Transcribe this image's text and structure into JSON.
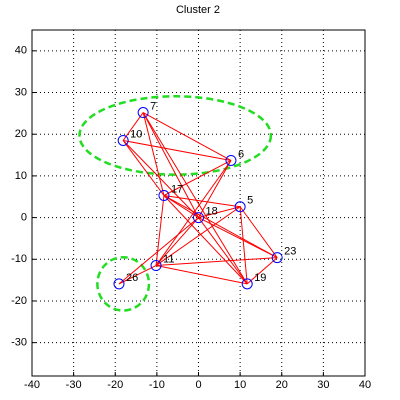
{
  "chart_data": {
    "type": "graph",
    "title": "Cluster 2",
    "xlim": [
      -40,
      40
    ],
    "ylim": [
      -38,
      45
    ],
    "xticks": [
      -40,
      -30,
      -20,
      -10,
      0,
      10,
      20,
      30,
      40
    ],
    "yticks": [
      -30,
      -20,
      -10,
      0,
      10,
      20,
      30,
      40
    ],
    "grid": true,
    "node_color": "#0000ff",
    "edge_color": "#ff0000",
    "ellipse_color": "#22dd22",
    "nodes": [
      {
        "label": "7",
        "x": -13.3,
        "y": 25.2
      },
      {
        "label": "10",
        "x": -18.1,
        "y": 18.5
      },
      {
        "label": "6",
        "x": 7.8,
        "y": 13.7
      },
      {
        "label": "17",
        "x": -8.3,
        "y": 5.3
      },
      {
        "label": "18",
        "x": 0,
        "y": 0
      },
      {
        "label": "5",
        "x": 10,
        "y": 2.6
      },
      {
        "label": "23",
        "x": 18.9,
        "y": -9.6
      },
      {
        "label": "11",
        "x": -10.2,
        "y": -11.5
      },
      {
        "label": "19",
        "x": 11.7,
        "y": -15.9
      },
      {
        "label": "26",
        "x": -19.1,
        "y": -15.9
      }
    ],
    "edges": [
      [
        0,
        1
      ],
      [
        0,
        2
      ],
      [
        1,
        2
      ],
      [
        0,
        3
      ],
      [
        1,
        3
      ],
      [
        0,
        4
      ],
      [
        1,
        4
      ],
      [
        2,
        3
      ],
      [
        2,
        4
      ],
      [
        2,
        7
      ],
      [
        3,
        4
      ],
      [
        3,
        5
      ],
      [
        3,
        7
      ],
      [
        3,
        8
      ],
      [
        3,
        6
      ],
      [
        4,
        5
      ],
      [
        4,
        7
      ],
      [
        4,
        8
      ],
      [
        4,
        6
      ],
      [
        4,
        9
      ],
      [
        5,
        7
      ],
      [
        5,
        8
      ],
      [
        5,
        6
      ],
      [
        7,
        6
      ],
      [
        7,
        8
      ],
      [
        7,
        9
      ],
      [
        6,
        8
      ],
      [
        0,
        8
      ]
    ],
    "ellipses": [
      {
        "cx": -5.6,
        "cy": 19.7,
        "rx": 23,
        "ry": 9.4
      },
      {
        "cx": -18.1,
        "cy": -15.9,
        "rx": 6.2,
        "ry": 6.4
      }
    ]
  }
}
